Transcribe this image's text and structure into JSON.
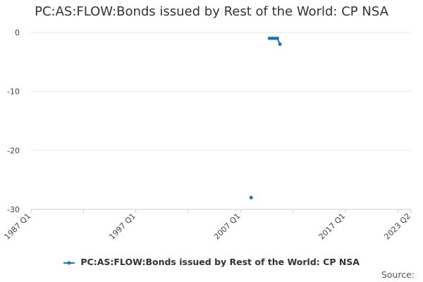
{
  "title": "PC:AS:FLOW:Bonds issued by Rest of the World: CP NSA",
  "source_label": "Source:",
  "chart_data": {
    "type": "line",
    "title": "PC:AS:FLOW:Bonds issued by Rest of the World: CP NSA",
    "xlabel": "",
    "ylabel": "",
    "x_tick_labels": [
      "1987 Q1",
      "1997 Q1",
      "2007 Q1",
      "2017 Q1",
      "2023 Q2"
    ],
    "y_ticks": [
      0,
      -10,
      -20,
      -30
    ],
    "ylim": [
      -30,
      0
    ],
    "xlim": [
      "1987 Q1",
      "2023 Q2"
    ],
    "grid": "horizontal",
    "legend_position": "bottom",
    "series_color": "#1f77b4",
    "series": [
      {
        "name": "PC:AS:FLOW:Bonds issued by Rest of the World: CP NSA",
        "points": [
          {
            "x": "2008 Q1",
            "y": -28
          },
          {
            "x": "2009 Q4",
            "y": -1
          },
          {
            "x": "2010 Q1",
            "y": -1
          },
          {
            "x": "2010 Q2",
            "y": -1
          },
          {
            "x": "2010 Q3",
            "y": -1
          },
          {
            "x": "2010 Q4",
            "y": -2
          }
        ]
      }
    ]
  }
}
